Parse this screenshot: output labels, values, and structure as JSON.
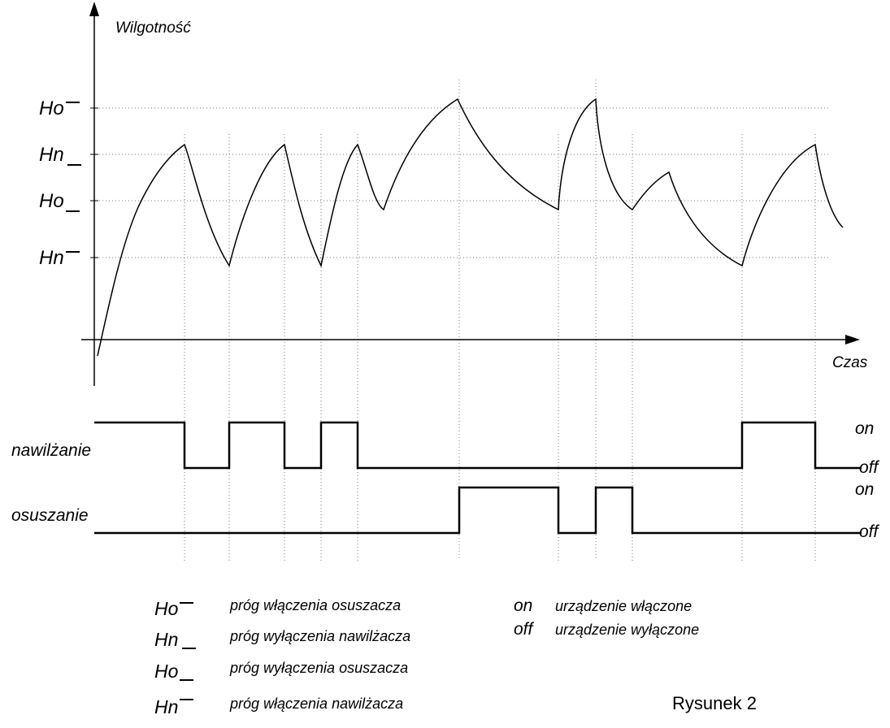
{
  "axes": {
    "y_label": "Wilgotność",
    "x_label": "Czas"
  },
  "thresholds": [
    {
      "id": "ho_upper",
      "symbol": "Ho",
      "bar": "upper"
    },
    {
      "id": "hn_lower",
      "symbol": "Hn",
      "bar": "lower"
    },
    {
      "id": "ho_lower",
      "symbol": "Ho",
      "bar": "lower"
    },
    {
      "id": "hn_upper",
      "symbol": "Hn",
      "bar": "upper"
    }
  ],
  "signals": {
    "humidification": {
      "label": "nawilżanie",
      "on": "on",
      "off": "off"
    },
    "dehumidification": {
      "label": "osuszanie",
      "on": "on",
      "off": "off"
    }
  },
  "legend": {
    "thresholds": [
      {
        "symbol": "Ho",
        "bar": "upper",
        "description": "próg włączenia osuszacza"
      },
      {
        "symbol": "Hn",
        "bar": "lower",
        "description": "próg wyłączenia nawilżacza"
      },
      {
        "symbol": "Ho",
        "bar": "lower",
        "description": "próg wyłączenia osuszacza"
      },
      {
        "symbol": "Hn",
        "bar": "upper",
        "description": "próg włączenia nawilżacza"
      }
    ],
    "states": [
      {
        "key": "on",
        "description": "urządzenie włączone"
      },
      {
        "key": "off",
        "description": "urządzenie wyłączone"
      }
    ]
  },
  "figure_label": "Rysunek 2"
}
